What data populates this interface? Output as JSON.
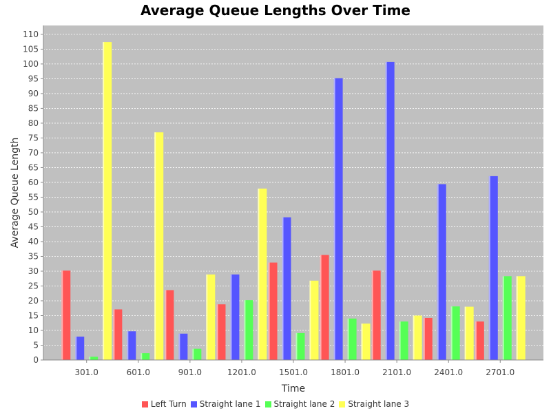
{
  "chart_data": {
    "type": "bar",
    "title": "Average Queue Lengths Over Time",
    "xlabel": "Time",
    "ylabel": "Average Queue Length",
    "ylim": [
      0,
      113
    ],
    "yticks": [
      0,
      5,
      10,
      15,
      20,
      25,
      30,
      35,
      40,
      45,
      50,
      55,
      60,
      65,
      70,
      75,
      80,
      85,
      90,
      95,
      100,
      105,
      110
    ],
    "categories": [
      "301.0",
      "601.0",
      "901.0",
      "1201.0",
      "1501.0",
      "1801.0",
      "2101.0",
      "2401.0",
      "2701.0"
    ],
    "grid": true,
    "legend_position": "bottom",
    "background": "#c0c0c0",
    "series": [
      {
        "name": "Left Turn",
        "color": "#ff5555",
        "values": [
          30.2,
          17.1,
          23.6,
          18.8,
          32.9,
          35.5,
          30.2,
          14.2,
          13.0
        ]
      },
      {
        "name": "Straight lane 1",
        "color": "#5555ff",
        "values": [
          7.9,
          9.7,
          8.9,
          28.9,
          48.2,
          95.2,
          100.7,
          59.4,
          62.1
        ]
      },
      {
        "name": "Straight lane 2",
        "color": "#55ff55",
        "values": [
          1.1,
          2.3,
          3.8,
          20.2,
          9.1,
          14.0,
          13.0,
          18.1,
          28.3
        ]
      },
      {
        "name": "Straight lane 3",
        "color": "#ffff55",
        "values": [
          107.4,
          76.9,
          28.9,
          57.9,
          26.8,
          12.3,
          15.0,
          18.0,
          28.3
        ]
      }
    ]
  }
}
